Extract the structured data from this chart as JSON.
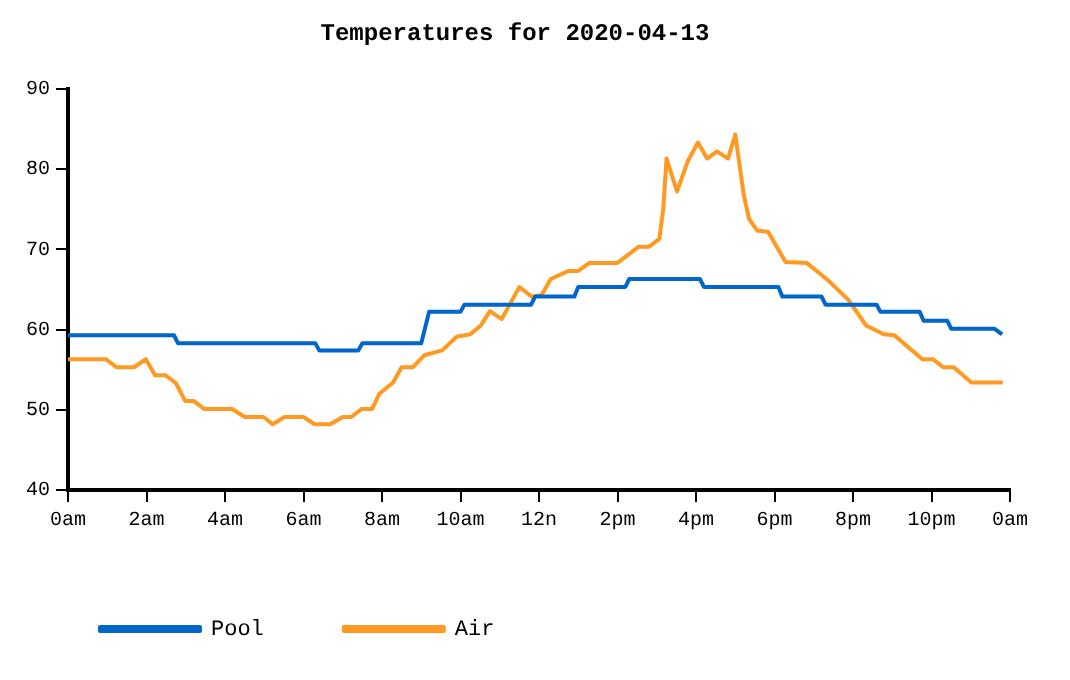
{
  "chart_data": {
    "type": "line",
    "title": "Temperatures for 2020-04-13",
    "xlim": [
      "2020-04-13T00:00",
      "2020-04-14T00:00"
    ],
    "xticks": [
      {
        "value": "2020-04-13T00:00",
        "label": "0am"
      },
      {
        "value": "2020-04-13T02:00",
        "label": "2am"
      },
      {
        "value": "2020-04-13T04:00",
        "label": "4am"
      },
      {
        "value": "2020-04-13T06:00",
        "label": "6am"
      },
      {
        "value": "2020-04-13T08:00",
        "label": "8am"
      },
      {
        "value": "2020-04-13T10:00",
        "label": "10am"
      },
      {
        "value": "2020-04-13T12:00",
        "label": "12n"
      },
      {
        "value": "2020-04-13T14:00",
        "label": "2pm"
      },
      {
        "value": "2020-04-13T16:00",
        "label": "4pm"
      },
      {
        "value": "2020-04-13T18:00",
        "label": "6pm"
      },
      {
        "value": "2020-04-13T20:00",
        "label": "8pm"
      },
      {
        "value": "2020-04-13T22:00",
        "label": "10pm"
      },
      {
        "value": "2020-04-14T00:00",
        "label": "0am"
      }
    ],
    "ylim": [
      40,
      90
    ],
    "yticks": [
      40,
      50,
      60,
      70,
      80,
      90
    ],
    "grid": false,
    "legend": "bottom left",
    "marker": "none",
    "line_style": "solid",
    "series": [
      {
        "name": "Pool",
        "color": "#0066cc",
        "x": [
          "2020-04-13T00:00",
          "2020-04-13T02:42",
          "2020-04-13T02:48",
          "2020-04-13T06:18",
          "2020-04-13T06:24",
          "2020-04-13T07:24",
          "2020-04-13T07:30",
          "2020-04-13T09:00",
          "2020-04-13T09:12",
          "2020-04-13T10:00",
          "2020-04-13T10:06",
          "2020-04-13T11:48",
          "2020-04-13T11:54",
          "2020-04-13T12:54",
          "2020-04-13T13:00",
          "2020-04-13T14:12",
          "2020-04-13T14:18",
          "2020-04-13T16:06",
          "2020-04-13T16:12",
          "2020-04-13T18:06",
          "2020-04-13T18:12",
          "2020-04-13T19:12",
          "2020-04-13T19:18",
          "2020-04-13T20:36",
          "2020-04-13T20:42",
          "2020-04-13T21:42",
          "2020-04-13T21:48",
          "2020-04-13T22:24",
          "2020-04-13T22:30",
          "2020-04-13T23:36",
          "2020-04-13T23:48"
        ],
        "values": [
          59.3,
          59.3,
          58.3,
          58.3,
          57.4,
          57.4,
          58.3,
          58.3,
          62.2,
          62.2,
          63.1,
          63.1,
          64.1,
          64.1,
          65.3,
          65.3,
          66.3,
          66.3,
          65.3,
          65.3,
          64.1,
          64.1,
          63.1,
          63.1,
          62.2,
          62.2,
          61.1,
          61.1,
          60.1,
          60.1,
          59.4
        ]
      },
      {
        "name": "Air",
        "color": "#ff9922",
        "x": [
          "2020-04-13T00:00",
          "2020-04-13T00:58",
          "2020-04-13T01:14",
          "2020-04-13T01:41",
          "2020-04-13T01:59",
          "2020-04-13T02:13",
          "2020-04-13T02:29",
          "2020-04-13T02:45",
          "2020-04-13T02:59",
          "2020-04-13T03:12",
          "2020-04-13T03:28",
          "2020-04-13T04:11",
          "2020-04-13T04:30",
          "2020-04-13T04:59",
          "2020-04-13T05:13",
          "2020-04-13T05:31",
          "2020-04-13T06:00",
          "2020-04-13T06:17",
          "2020-04-13T06:41",
          "2020-04-13T07:00",
          "2020-04-13T07:13",
          "2020-04-13T07:29",
          "2020-04-13T07:45",
          "2020-04-13T07:56",
          "2020-04-13T08:17",
          "2020-04-13T08:30",
          "2020-04-13T08:47",
          "2020-04-13T09:05",
          "2020-04-13T09:32",
          "2020-04-13T09:54",
          "2020-04-13T10:15",
          "2020-04-13T10:31",
          "2020-04-13T10:45",
          "2020-04-13T11:03",
          "2020-04-13T11:30",
          "2020-04-13T11:49",
          "2020-04-13T12:04",
          "2020-04-13T12:18",
          "2020-04-13T12:45",
          "2020-04-13T13:00",
          "2020-04-13T13:17",
          "2020-04-13T14:00",
          "2020-04-13T14:32",
          "2020-04-13T14:48",
          "2020-04-13T15:04",
          "2020-04-13T15:10",
          "2020-04-13T15:15",
          "2020-04-13T15:31",
          "2020-04-13T15:47",
          "2020-04-13T16:03",
          "2020-04-13T16:17",
          "2020-04-13T16:32",
          "2020-04-13T16:49",
          "2020-04-13T17:00",
          "2020-04-13T17:13",
          "2020-04-13T17:21",
          "2020-04-13T17:34",
          "2020-04-13T17:50",
          "2020-04-13T18:17",
          "2020-04-13T18:49",
          "2020-04-13T19:21",
          "2020-04-13T19:53",
          "2020-04-13T20:20",
          "2020-04-13T20:47",
          "2020-04-13T21:03",
          "2020-04-13T21:46",
          "2020-04-13T22:02",
          "2020-04-13T22:18",
          "2020-04-13T22:34",
          "2020-04-13T23:01",
          "2020-04-13T23:49"
        ],
        "values": [
          56.3,
          56.3,
          55.3,
          55.3,
          56.3,
          54.3,
          54.3,
          53.3,
          51.1,
          51.1,
          50.1,
          50.1,
          49.1,
          49.1,
          48.2,
          49.1,
          49.1,
          48.2,
          48.2,
          49.1,
          49.1,
          50.1,
          50.1,
          52,
          53.4,
          55.3,
          55.3,
          56.8,
          57.4,
          59.1,
          59.4,
          60.5,
          62.3,
          61.3,
          65.3,
          64.1,
          64.3,
          66.3,
          67.3,
          67.3,
          68.3,
          68.3,
          70.3,
          70.3,
          71.3,
          75.1,
          81.3,
          77.2,
          80.9,
          83.3,
          81.3,
          82.2,
          81.3,
          84.3,
          76.8,
          73.8,
          72.3,
          72.2,
          68.4,
          68.3,
          66.2,
          63.7,
          60.5,
          59.4,
          59.3,
          56.3,
          56.3,
          55.3,
          55.3,
          53.4,
          53.4
        ]
      }
    ]
  }
}
